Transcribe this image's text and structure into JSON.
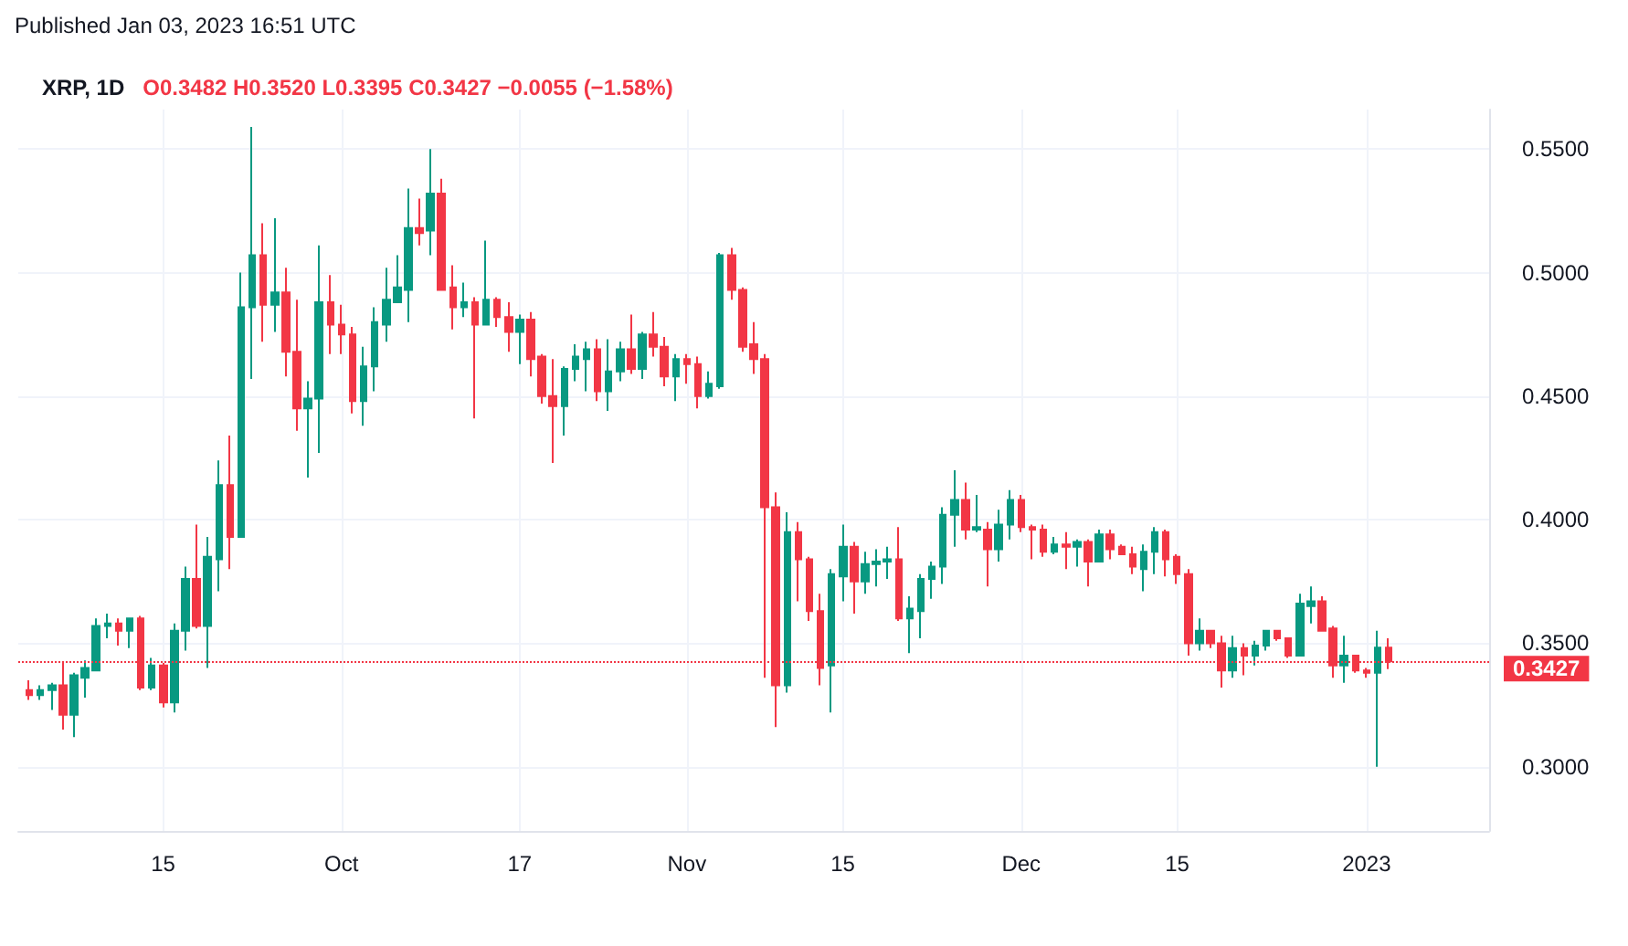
{
  "chart_data": {
    "type": "candlestick",
    "title": "XRP, 1D",
    "subtitle": "O0.3482 H0.3520 L0.3395 C0.3427 −0.0055 (−1.58%)",
    "annotations": [
      "Published Jan 03, 2023 16:51 UTC"
    ],
    "x": [
      "2022-09-03",
      "2022-09-04",
      "2022-09-05",
      "2022-09-06",
      "2022-09-07",
      "2022-09-08",
      "2022-09-09",
      "2022-09-10",
      "2022-09-11",
      "2022-09-12",
      "2022-09-13",
      "2022-09-14",
      "2022-09-15",
      "2022-09-16",
      "2022-09-17",
      "2022-09-18",
      "2022-09-19",
      "2022-09-20",
      "2022-09-21",
      "2022-09-22",
      "2022-09-23",
      "2022-09-24",
      "2022-09-25",
      "2022-09-26",
      "2022-09-27",
      "2022-09-28",
      "2022-09-29",
      "2022-09-30",
      "2022-10-01",
      "2022-10-02",
      "2022-10-03",
      "2022-10-04",
      "2022-10-05",
      "2022-10-06",
      "2022-10-07",
      "2022-10-08",
      "2022-10-09",
      "2022-10-10",
      "2022-10-11",
      "2022-10-12",
      "2022-10-13",
      "2022-10-14",
      "2022-10-15",
      "2022-10-16",
      "2022-10-17",
      "2022-10-18",
      "2022-10-19",
      "2022-10-20",
      "2022-10-21",
      "2022-10-22",
      "2022-10-23",
      "2022-10-24",
      "2022-10-25",
      "2022-10-26",
      "2022-10-27",
      "2022-10-28",
      "2022-10-29",
      "2022-10-30",
      "2022-10-31",
      "2022-11-01",
      "2022-11-02",
      "2022-11-03",
      "2022-11-04",
      "2022-11-05",
      "2022-11-06",
      "2022-11-07",
      "2022-11-08",
      "2022-11-09",
      "2022-11-10",
      "2022-11-11",
      "2022-11-12",
      "2022-11-13",
      "2022-11-14",
      "2022-11-15",
      "2022-11-16",
      "2022-11-17",
      "2022-11-18",
      "2022-11-19",
      "2022-11-20",
      "2022-11-21",
      "2022-11-22",
      "2022-11-23",
      "2022-11-24",
      "2022-11-25",
      "2022-11-26",
      "2022-11-27",
      "2022-11-28",
      "2022-11-29",
      "2022-11-30",
      "2022-12-01",
      "2022-12-02",
      "2022-12-03",
      "2022-12-04",
      "2022-12-05",
      "2022-12-06",
      "2022-12-07",
      "2022-12-08",
      "2022-12-09",
      "2022-12-10",
      "2022-12-11",
      "2022-12-12",
      "2022-12-13",
      "2022-12-14",
      "2022-12-15",
      "2022-12-16",
      "2022-12-17",
      "2022-12-18",
      "2022-12-19",
      "2022-12-20",
      "2022-12-21",
      "2022-12-22",
      "2022-12-23",
      "2022-12-24",
      "2022-12-25",
      "2022-12-26",
      "2022-12-27",
      "2022-12-28",
      "2022-12-29",
      "2022-12-30",
      "2022-12-31",
      "2023-01-01",
      "2023-01-02",
      "2023-01-03"
    ],
    "ohlc": [
      [
        0.331,
        0.335,
        0.327,
        0.329
      ],
      [
        0.329,
        0.333,
        0.327,
        0.331
      ],
      [
        0.331,
        0.334,
        0.323,
        0.333
      ],
      [
        0.333,
        0.342,
        0.315,
        0.321
      ],
      [
        0.321,
        0.338,
        0.312,
        0.337
      ],
      [
        0.336,
        0.343,
        0.328,
        0.34
      ],
      [
        0.339,
        0.36,
        0.339,
        0.357
      ],
      [
        0.357,
        0.362,
        0.352,
        0.358
      ],
      [
        0.358,
        0.36,
        0.349,
        0.355
      ],
      [
        0.355,
        0.36,
        0.348,
        0.36
      ],
      [
        0.36,
        0.361,
        0.331,
        0.332
      ],
      [
        0.332,
        0.344,
        0.331,
        0.341
      ],
      [
        0.341,
        0.342,
        0.324,
        0.326
      ],
      [
        0.326,
        0.358,
        0.322,
        0.355
      ],
      [
        0.355,
        0.381,
        0.347,
        0.376
      ],
      [
        0.376,
        0.398,
        0.356,
        0.357
      ],
      [
        0.357,
        0.393,
        0.34,
        0.385
      ],
      [
        0.384,
        0.424,
        0.371,
        0.414
      ],
      [
        0.414,
        0.434,
        0.38,
        0.393
      ],
      [
        0.393,
        0.5,
        0.393,
        0.486
      ],
      [
        0.486,
        0.559,
        0.457,
        0.507
      ],
      [
        0.507,
        0.52,
        0.472,
        0.487
      ],
      [
        0.487,
        0.522,
        0.476,
        0.492
      ],
      [
        0.492,
        0.502,
        0.458,
        0.468
      ],
      [
        0.468,
        0.489,
        0.436,
        0.445
      ],
      [
        0.445,
        0.456,
        0.417,
        0.449
      ],
      [
        0.449,
        0.511,
        0.427,
        0.488
      ],
      [
        0.488,
        0.499,
        0.467,
        0.479
      ],
      [
        0.479,
        0.487,
        0.467,
        0.475
      ],
      [
        0.475,
        0.478,
        0.443,
        0.448
      ],
      [
        0.448,
        0.47,
        0.438,
        0.462
      ],
      [
        0.462,
        0.486,
        0.452,
        0.48
      ],
      [
        0.479,
        0.502,
        0.472,
        0.489
      ],
      [
        0.488,
        0.507,
        0.488,
        0.494
      ],
      [
        0.493,
        0.534,
        0.48,
        0.518
      ],
      [
        0.518,
        0.53,
        0.511,
        0.516
      ],
      [
        0.517,
        0.55,
        0.507,
        0.532
      ],
      [
        0.532,
        0.538,
        0.493,
        0.493
      ],
      [
        0.494,
        0.503,
        0.477,
        0.486
      ],
      [
        0.486,
        0.496,
        0.482,
        0.488
      ],
      [
        0.488,
        0.49,
        0.441,
        0.479
      ],
      [
        0.479,
        0.513,
        0.479,
        0.489
      ],
      [
        0.489,
        0.49,
        0.478,
        0.482
      ],
      [
        0.482,
        0.488,
        0.468,
        0.476
      ],
      [
        0.476,
        0.483,
        0.463,
        0.481
      ],
      [
        0.481,
        0.484,
        0.458,
        0.465
      ],
      [
        0.466,
        0.467,
        0.447,
        0.45
      ],
      [
        0.45,
        0.465,
        0.423,
        0.446
      ],
      [
        0.446,
        0.462,
        0.434,
        0.461
      ],
      [
        0.461,
        0.471,
        0.456,
        0.466
      ],
      [
        0.465,
        0.472,
        0.452,
        0.469
      ],
      [
        0.469,
        0.473,
        0.448,
        0.452
      ],
      [
        0.452,
        0.473,
        0.444,
        0.46
      ],
      [
        0.46,
        0.472,
        0.456,
        0.469
      ],
      [
        0.469,
        0.483,
        0.459,
        0.461
      ],
      [
        0.461,
        0.476,
        0.457,
        0.475
      ],
      [
        0.475,
        0.484,
        0.466,
        0.47
      ],
      [
        0.47,
        0.474,
        0.454,
        0.458
      ],
      [
        0.458,
        0.467,
        0.448,
        0.465
      ],
      [
        0.465,
        0.467,
        0.455,
        0.463
      ],
      [
        0.463,
        0.466,
        0.445,
        0.45
      ],
      [
        0.45,
        0.46,
        0.449,
        0.455
      ],
      [
        0.454,
        0.508,
        0.453,
        0.507
      ],
      [
        0.507,
        0.51,
        0.489,
        0.493
      ],
      [
        0.493,
        0.494,
        0.468,
        0.47
      ],
      [
        0.471,
        0.48,
        0.459,
        0.465
      ],
      [
        0.465,
        0.467,
        0.336,
        0.405
      ],
      [
        0.405,
        0.411,
        0.316,
        0.333
      ],
      [
        0.333,
        0.403,
        0.33,
        0.395
      ],
      [
        0.395,
        0.399,
        0.367,
        0.384
      ],
      [
        0.384,
        0.385,
        0.359,
        0.363
      ],
      [
        0.363,
        0.37,
        0.333,
        0.34
      ],
      [
        0.341,
        0.38,
        0.322,
        0.378
      ],
      [
        0.377,
        0.398,
        0.367,
        0.389
      ],
      [
        0.389,
        0.391,
        0.362,
        0.375
      ],
      [
        0.375,
        0.387,
        0.37,
        0.382
      ],
      [
        0.382,
        0.388,
        0.373,
        0.383
      ],
      [
        0.383,
        0.389,
        0.376,
        0.384
      ],
      [
        0.384,
        0.397,
        0.359,
        0.36
      ],
      [
        0.36,
        0.369,
        0.346,
        0.364
      ],
      [
        0.363,
        0.378,
        0.352,
        0.376
      ],
      [
        0.376,
        0.383,
        0.368,
        0.381
      ],
      [
        0.381,
        0.405,
        0.374,
        0.402
      ],
      [
        0.402,
        0.42,
        0.389,
        0.408
      ],
      [
        0.408,
        0.415,
        0.392,
        0.396
      ],
      [
        0.396,
        0.41,
        0.395,
        0.397
      ],
      [
        0.396,
        0.399,
        0.373,
        0.388
      ],
      [
        0.388,
        0.404,
        0.383,
        0.398
      ],
      [
        0.398,
        0.412,
        0.392,
        0.408
      ],
      [
        0.408,
        0.41,
        0.395,
        0.397
      ],
      [
        0.397,
        0.398,
        0.384,
        0.396
      ],
      [
        0.396,
        0.398,
        0.385,
        0.387
      ],
      [
        0.387,
        0.393,
        0.386,
        0.39
      ],
      [
        0.39,
        0.395,
        0.38,
        0.389
      ],
      [
        0.389,
        0.392,
        0.381,
        0.391
      ],
      [
        0.391,
        0.392,
        0.373,
        0.383
      ],
      [
        0.383,
        0.396,
        0.383,
        0.394
      ],
      [
        0.394,
        0.396,
        0.384,
        0.388
      ],
      [
        0.389,
        0.39,
        0.386,
        0.386
      ],
      [
        0.386,
        0.389,
        0.378,
        0.381
      ],
      [
        0.38,
        0.39,
        0.371,
        0.387
      ],
      [
        0.387,
        0.397,
        0.378,
        0.395
      ],
      [
        0.395,
        0.396,
        0.377,
        0.384
      ],
      [
        0.385,
        0.386,
        0.374,
        0.378
      ],
      [
        0.378,
        0.38,
        0.345,
        0.35
      ],
      [
        0.35,
        0.36,
        0.347,
        0.355
      ],
      [
        0.355,
        0.355,
        0.348,
        0.35
      ],
      [
        0.35,
        0.353,
        0.332,
        0.339
      ],
      [
        0.339,
        0.353,
        0.336,
        0.348
      ],
      [
        0.348,
        0.35,
        0.337,
        0.345
      ],
      [
        0.345,
        0.351,
        0.341,
        0.349
      ],
      [
        0.349,
        0.355,
        0.347,
        0.355
      ],
      [
        0.355,
        0.355,
        0.351,
        0.352
      ],
      [
        0.352,
        0.352,
        0.344,
        0.345
      ],
      [
        0.345,
        0.37,
        0.345,
        0.366
      ],
      [
        0.365,
        0.373,
        0.358,
        0.367
      ],
      [
        0.367,
        0.369,
        0.355,
        0.355
      ],
      [
        0.356,
        0.357,
        0.336,
        0.341
      ],
      [
        0.341,
        0.353,
        0.334,
        0.345
      ],
      [
        0.345,
        0.345,
        0.338,
        0.339
      ],
      [
        0.339,
        0.34,
        0.336,
        0.338
      ],
      [
        0.338,
        0.355,
        0.3,
        0.3482
      ],
      [
        0.3482,
        0.352,
        0.3395,
        0.3427
      ]
    ],
    "xlim": [
      "2022-09-02",
      "2023-01-12"
    ],
    "xticks": [
      {
        "value": "2022-09-15",
        "label": "15"
      },
      {
        "value": "2022-10-01",
        "label": "Oct"
      },
      {
        "value": "2022-10-17",
        "label": "17"
      },
      {
        "value": "2022-11-01",
        "label": "Nov"
      },
      {
        "value": "2022-11-15",
        "label": "15"
      },
      {
        "value": "2022-12-01",
        "label": "Dec"
      },
      {
        "value": "2022-12-15",
        "label": "15"
      },
      {
        "value": "2023-01-01",
        "label": "2023"
      }
    ],
    "ylim": [
      0.274,
      0.566
    ],
    "yticks": [
      {
        "value": 0.3,
        "label": "0.3000"
      },
      {
        "value": 0.35,
        "label": "0.3500"
      },
      {
        "value": 0.4,
        "label": "0.4000"
      },
      {
        "value": 0.45,
        "label": "0.4500"
      },
      {
        "value": 0.5,
        "label": "0.5000"
      },
      {
        "value": 0.55,
        "label": "0.5500"
      }
    ],
    "ref_lines": [
      {
        "axis": "y",
        "value": 0.3427,
        "label": "0.3427",
        "color": "#f23645",
        "line_style": "dotted"
      }
    ],
    "grid": true
  }
}
